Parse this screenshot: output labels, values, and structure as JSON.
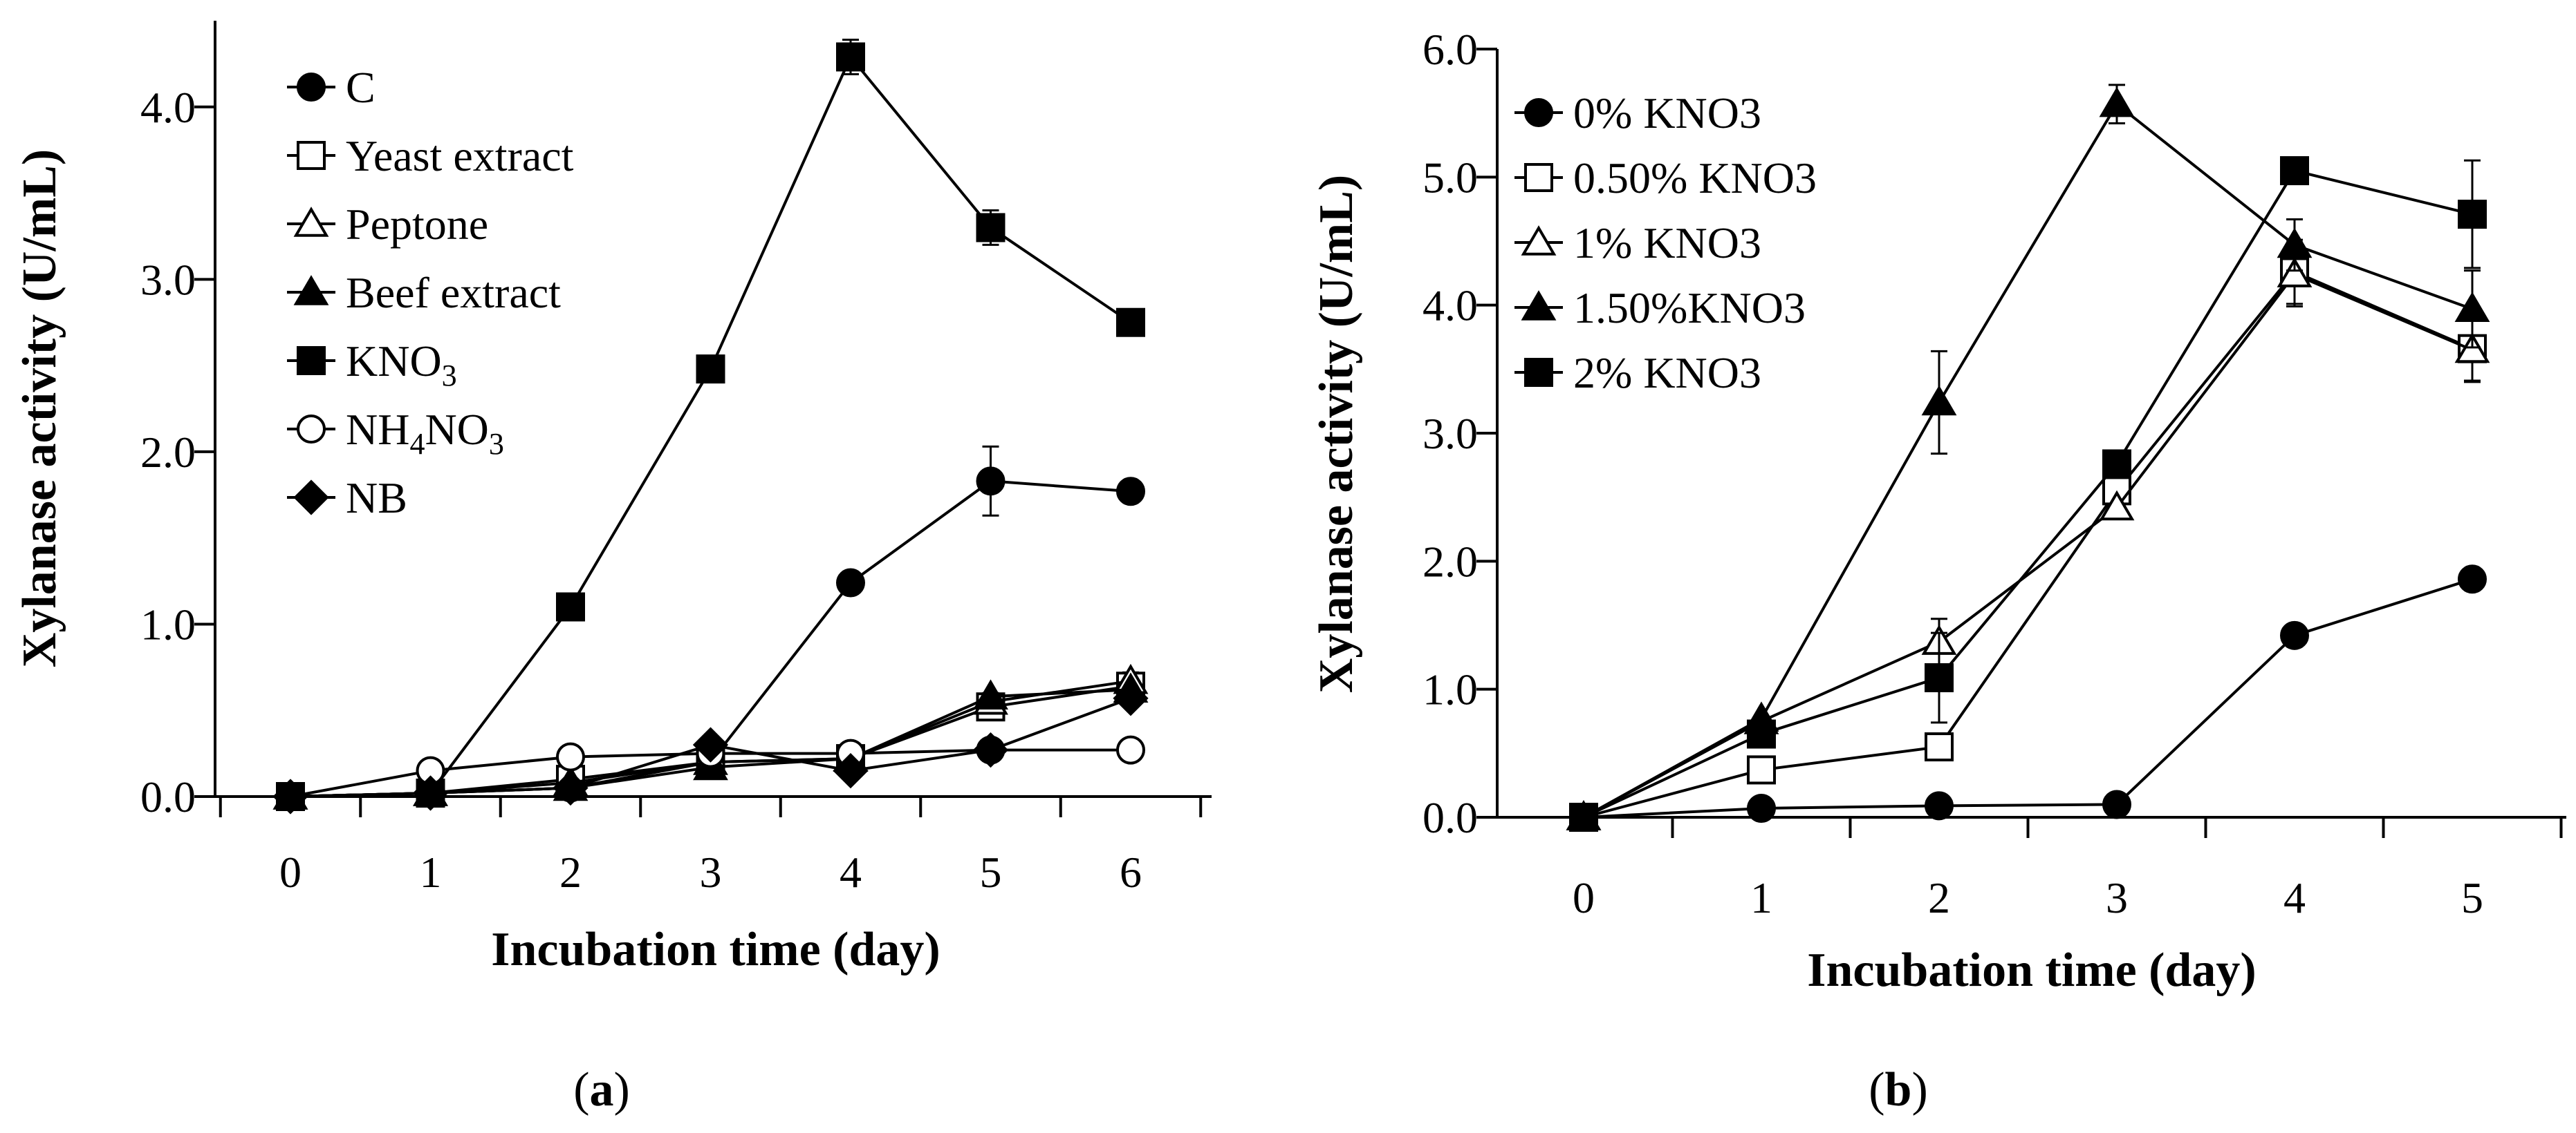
{
  "chart_data": [
    {
      "panel_id": "a",
      "type": "line",
      "panel_label": {
        "open": "(",
        "letter": "a",
        "close": ")"
      },
      "xlabel": "Incubation time (day)",
      "ylabel": "Xylanase activity (U/mL)",
      "x": [
        0,
        1,
        2,
        3,
        4,
        5,
        6
      ],
      "xlim": [
        -0.5,
        6.5
      ],
      "ylim": [
        0,
        4.5
      ],
      "yticks": [
        0,
        1,
        2,
        3,
        4
      ],
      "ytick_labels": [
        "0.0",
        "1.0",
        "2.0",
        "3.0",
        "4.0"
      ],
      "xticks": [
        0,
        1,
        2,
        3,
        4,
        5,
        6
      ],
      "xtick_labels": [
        "0",
        "1",
        "2",
        "3",
        "4",
        "5",
        "6"
      ],
      "legend_position": "top-left",
      "series": [
        {
          "name": "C",
          "marker": "circle-filled",
          "values": [
            0.0,
            0.02,
            0.05,
            0.2,
            1.24,
            1.83,
            1.77
          ],
          "errors": [
            0,
            0,
            0,
            0,
            0,
            0.2,
            0
          ]
        },
        {
          "name": "Yeast extract",
          "marker": "square-open",
          "values": [
            0.0,
            0.02,
            0.1,
            0.2,
            0.22,
            0.52,
            0.64
          ],
          "errors": [
            0,
            0,
            0,
            0,
            0,
            0.05,
            0.05
          ]
        },
        {
          "name": "Peptone",
          "marker": "triangle-open",
          "values": [
            0.0,
            0.02,
            0.08,
            0.2,
            0.22,
            0.55,
            0.67
          ],
          "errors": [
            0,
            0,
            0,
            0,
            0,
            0.05,
            0.05
          ]
        },
        {
          "name": "Beef extract",
          "marker": "triangle-filled",
          "values": [
            0.0,
            0.02,
            0.05,
            0.17,
            0.22,
            0.58,
            0.62
          ],
          "errors": [
            0,
            0,
            0,
            0,
            0,
            0,
            0
          ]
        },
        {
          "name": "KNO",
          "name_sub": "3",
          "marker": "square-filled",
          "values": [
            0.0,
            0.02,
            1.1,
            2.48,
            4.29,
            3.3,
            2.75
          ],
          "errors": [
            0,
            0,
            0,
            0,
            0.1,
            0.1,
            0
          ]
        },
        {
          "name_parts": [
            "NH",
            "4",
            "NO",
            "3"
          ],
          "name": "NH4NO3",
          "marker": "circle-open",
          "values": [
            0.0,
            0.15,
            0.23,
            0.25,
            0.25,
            0.27,
            0.27
          ],
          "errors": [
            0,
            0,
            0,
            0,
            0,
            0,
            0
          ]
        },
        {
          "name": "NB",
          "marker": "diamond-filled",
          "values": [
            0.0,
            0.02,
            0.05,
            0.3,
            0.15,
            0.27,
            0.57
          ],
          "errors": [
            0,
            0,
            0,
            0,
            0,
            0,
            0
          ]
        }
      ]
    },
    {
      "panel_id": "b",
      "type": "line",
      "panel_label": {
        "open": "(",
        "letter": "b",
        "close": ")"
      },
      "xlabel": "Incubation time (day)",
      "ylabel": "Xylanase activity (U/mL)",
      "x": [
        0,
        1,
        2,
        3,
        4,
        5
      ],
      "xlim": [
        -0.5,
        5.5
      ],
      "ylim": [
        0,
        6
      ],
      "yticks": [
        0,
        1,
        2,
        3,
        4,
        5,
        6
      ],
      "ytick_labels": [
        "0.0",
        "1.0",
        "2.0",
        "3.0",
        "4.0",
        "5.0",
        "6.0"
      ],
      "xticks": [
        0,
        1,
        2,
        3,
        4,
        5
      ],
      "xtick_labels": [
        "0",
        "1",
        "2",
        "3",
        "4",
        "5"
      ],
      "legend_position": "top-left",
      "series": [
        {
          "name": "0% KNO3",
          "marker": "circle-filled",
          "values": [
            0.0,
            0.07,
            0.09,
            0.1,
            1.42,
            1.86
          ],
          "errors": [
            0,
            0,
            0,
            0,
            0,
            0
          ]
        },
        {
          "name": "0.50% KNO3",
          "marker": "square-open",
          "values": [
            0.0,
            0.37,
            0.55,
            2.55,
            4.26,
            3.66
          ],
          "errors": [
            0,
            0,
            0,
            0,
            0.25,
            0.25
          ]
        },
        {
          "name": "1% KNO3",
          "marker": "triangle-open",
          "values": [
            0.0,
            0.75,
            1.37,
            2.42,
            4.24,
            3.65
          ],
          "errors": [
            0,
            0,
            0.18,
            0,
            0.25,
            0.25
          ]
        },
        {
          "name": "1.50%KNO3",
          "marker": "triangle-filled",
          "values": [
            0.0,
            0.77,
            3.24,
            5.57,
            4.47,
            3.97
          ],
          "errors": [
            0,
            0,
            0.4,
            0.15,
            0.2,
            0.3
          ]
        },
        {
          "name": "2% KNO3",
          "marker": "square-filled",
          "values": [
            0.0,
            0.65,
            1.09,
            2.76,
            5.05,
            4.71
          ],
          "errors": [
            0,
            0,
            0.35,
            0,
            0,
            0.42
          ]
        }
      ]
    }
  ]
}
